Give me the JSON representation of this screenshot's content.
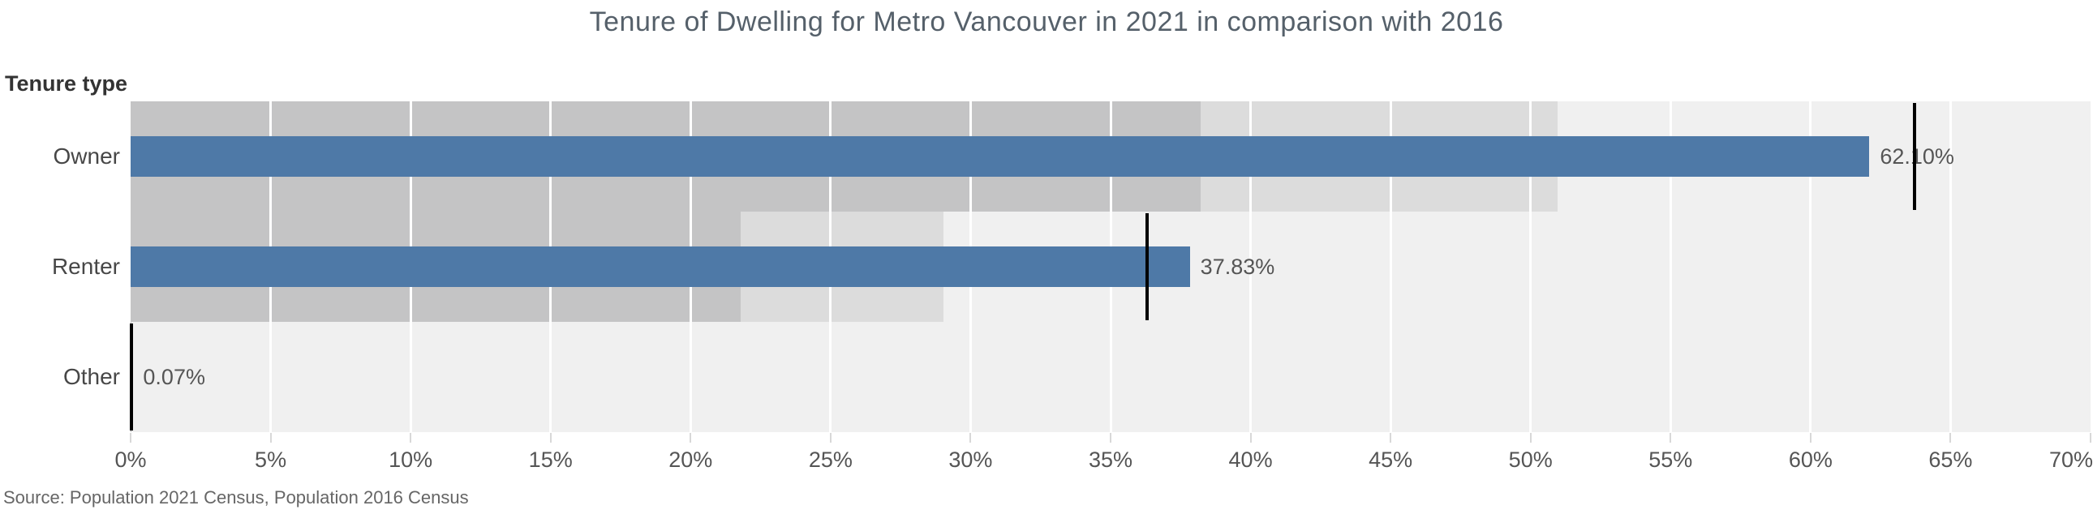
{
  "title": "Tenure of Dwelling for Metro Vancouver in 2021 in comparison with 2016",
  "left_header": "Tenure type",
  "source": "Source: Population 2021 Census, Population 2016 Census",
  "colors": {
    "bar_2021": "#4e79a7",
    "band_dark": "#c4c4c5",
    "band_mid": "#dcdcdc",
    "band_light": "#f0f0f0",
    "reference_line": "#000000",
    "gridline": "#ffffff",
    "tick": "#d8d8d8",
    "axis_text": "#555555",
    "title_text": "#55606a"
  },
  "chart_data": {
    "type": "bar",
    "subtype": "bullet",
    "orientation": "horizontal",
    "title": "Tenure of Dwelling for Metro Vancouver in 2021 in comparison with 2016",
    "row_axis_label": "Tenure type",
    "categories": [
      "Owner",
      "Renter",
      "Other"
    ],
    "series": [
      {
        "name": "2021 Census",
        "values": [
          62.1,
          37.83,
          0.07
        ],
        "labels": [
          "62.10%",
          "37.83%",
          "0.07%"
        ]
      },
      {
        "name": "2016 Census reference line",
        "values": [
          63.7,
          36.3,
          0.04
        ]
      }
    ],
    "bands": "gray bands drawn at 60% and 80% of the 2016 reference value, lightest band fills to axis max",
    "xlim": [
      0,
      70
    ],
    "tick_step": 5,
    "tick_labels": [
      "0%",
      "5%",
      "10%",
      "15%",
      "20%",
      "25%",
      "30%",
      "35%",
      "40%",
      "45%",
      "50%",
      "55%",
      "60%",
      "65%",
      "70%"
    ],
    "grid": "white vertical gridlines every 5%",
    "legend": "none",
    "annotations": "black vertical reference line per row shows 2016 value; value label printed right of each 2021 bar"
  }
}
